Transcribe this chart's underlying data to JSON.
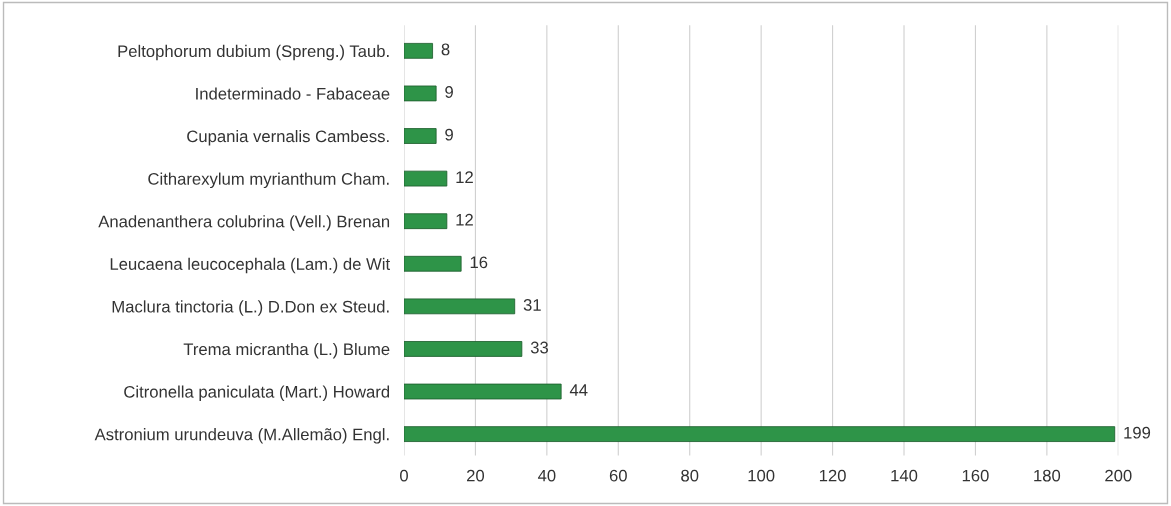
{
  "chart_data": {
    "type": "bar",
    "orientation": "horizontal",
    "categories": [
      "Peltophorum dubium (Spreng.) Taub.",
      "Indeterminado - Fabaceae",
      "Cupania vernalis Cambess.",
      "Citharexylum myrianthum Cham.",
      "Anadenanthera colubrina (Vell.) Brenan",
      "Leucaena leucocephala (Lam.) de Wit",
      "Maclura tinctoria (L.) D.Don ex Steud.",
      "Trema micrantha (L.) Blume",
      "Citronella paniculata (Mart.) Howard",
      "Astronium urundeuva (M.Allemão) Engl."
    ],
    "values": [
      8,
      9,
      9,
      12,
      12,
      16,
      31,
      33,
      44,
      199
    ],
    "color": "#2e9448",
    "xlim": [
      0,
      200
    ],
    "xticks": [
      0,
      20,
      40,
      60,
      80,
      100,
      120,
      140,
      160,
      180,
      200
    ],
    "grid": "x",
    "data_labels": true
  }
}
